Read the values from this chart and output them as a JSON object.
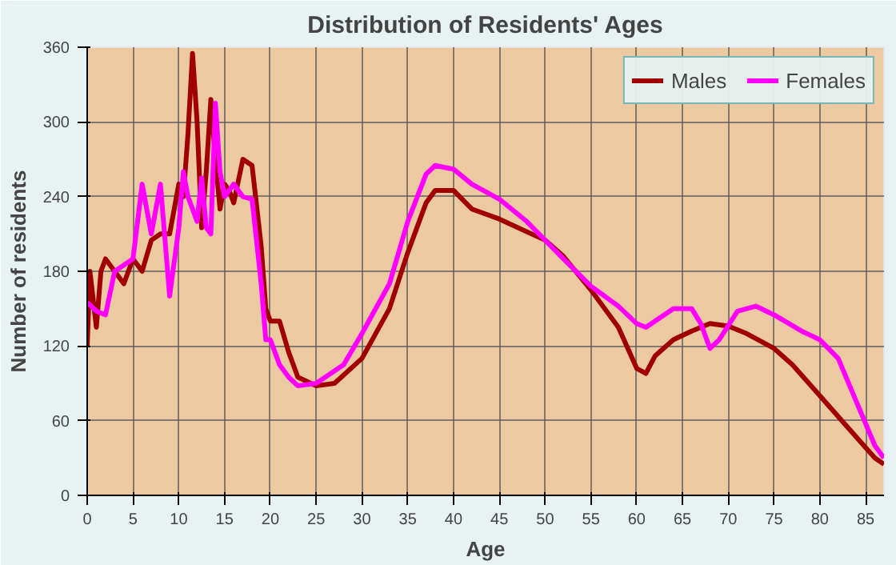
{
  "chart_data": {
    "type": "line",
    "title": "Distribution of Residents' Ages",
    "xlabel": "Age",
    "ylabel": "Number of residents",
    "xlim": [
      0,
      87
    ],
    "xticks": [
      0,
      5,
      10,
      15,
      20,
      25,
      30,
      35,
      40,
      45,
      50,
      55,
      60,
      65,
      70,
      75,
      80,
      85
    ],
    "ylim": [
      0,
      360
    ],
    "yticks": [
      0,
      60,
      120,
      180,
      240,
      300,
      360
    ],
    "grid": true,
    "legend": "top right",
    "marker": "none",
    "line_style": "solid",
    "series": [
      {
        "name": "Males",
        "color": "#a00000",
        "x": [
          0,
          0.3,
          1,
          1.5,
          2,
          3,
          4,
          5,
          6,
          7,
          8,
          9,
          10,
          10.5,
          11,
          11.5,
          12,
          12.5,
          13,
          13.5,
          14,
          14.5,
          15,
          15.5,
          16,
          17,
          18,
          19,
          19.5,
          20,
          21,
          22,
          23,
          25,
          27,
          30,
          33,
          35,
          37,
          38,
          40,
          42,
          45,
          50,
          52,
          55,
          58,
          60,
          61,
          62,
          64,
          66,
          68,
          70,
          72,
          75,
          77,
          80,
          83,
          86,
          87
        ],
        "values": [
          120,
          180,
          135,
          180,
          190,
          180,
          170,
          190,
          180,
          205,
          210,
          210,
          250,
          240,
          290,
          355,
          300,
          215,
          260,
          318,
          270,
          230,
          250,
          245,
          235,
          270,
          265,
          200,
          150,
          140,
          140,
          115,
          95,
          88,
          90,
          110,
          150,
          195,
          235,
          245,
          245,
          230,
          222,
          205,
          192,
          165,
          135,
          102,
          98,
          112,
          125,
          132,
          138,
          136,
          130,
          118,
          105,
          80,
          55,
          30,
          25
        ]
      },
      {
        "name": "Females",
        "color": "#ff00ff",
        "x": [
          0,
          1,
          2,
          3,
          4,
          5,
          6,
          7,
          8,
          9,
          10,
          10.5,
          11,
          12,
          12.5,
          13,
          13.5,
          14,
          14.5,
          15,
          16,
          17,
          18,
          19,
          19.5,
          20,
          21,
          22,
          23,
          25,
          28,
          30,
          33,
          35,
          37,
          38,
          40,
          42,
          45,
          48,
          50,
          52,
          55,
          58,
          60,
          61,
          62,
          64,
          66,
          67,
          68,
          69,
          71,
          73,
          75,
          78,
          80,
          82,
          84,
          86,
          87
        ],
        "values": [
          155,
          148,
          145,
          180,
          185,
          190,
          250,
          210,
          250,
          160,
          215,
          260,
          240,
          220,
          255,
          215,
          210,
          315,
          260,
          240,
          250,
          240,
          238,
          170,
          125,
          125,
          105,
          95,
          88,
          90,
          105,
          130,
          170,
          220,
          258,
          265,
          262,
          250,
          238,
          220,
          205,
          190,
          168,
          152,
          138,
          135,
          140,
          150,
          150,
          138,
          118,
          125,
          148,
          152,
          145,
          132,
          125,
          110,
          75,
          40,
          30
        ]
      }
    ]
  }
}
